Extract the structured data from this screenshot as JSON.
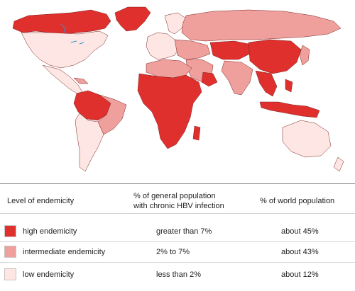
{
  "colors": {
    "high": "#e0302e",
    "intermediate": "#f0a09c",
    "low": "#fde6e3",
    "border": "#7a2020",
    "water": "#ffffff"
  },
  "table": {
    "headers": {
      "level": "Level of endemicity",
      "general_line1": "% of general population",
      "general_line2": "with chronic HBV infection",
      "world": "% of world population"
    },
    "rows": [
      {
        "level": "high endemicity",
        "general": "greater than 7%",
        "world": "about 45%",
        "color": "#e0302e"
      },
      {
        "level": "intermediate endemicity",
        "general": "2% to 7%",
        "world": "about 43%",
        "color": "#f0a09c"
      },
      {
        "level": "low endemicity",
        "general": "less than 2%",
        "world": "about 12%",
        "color": "#fde6e3"
      }
    ]
  }
}
